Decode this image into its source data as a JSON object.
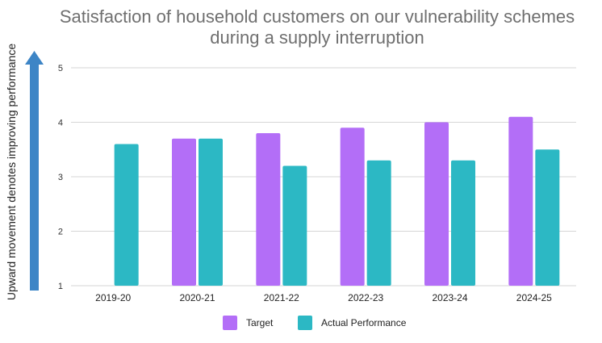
{
  "chart_data": {
    "type": "bar",
    "title": "Satisfaction of household customers on our vulnerability schemes during a supply interruption",
    "title_lines": [
      "Satisfaction of household customers on our vulnerability schemes",
      "during a supply interruption"
    ],
    "ylabel": "Upward movement denotes improving performance",
    "xlabel": "",
    "categories": [
      "2019-20",
      "2020-21",
      "2021-22",
      "2022-23",
      "2023-24",
      "2024-25"
    ],
    "series": [
      {
        "name": "Target",
        "color": "#b36ef7",
        "values": [
          null,
          3.7,
          3.8,
          3.9,
          4.0,
          4.1
        ]
      },
      {
        "name": "Actual Performance",
        "color": "#2cb8c4",
        "values": [
          3.6,
          3.7,
          3.2,
          3.3,
          3.3,
          3.5
        ]
      }
    ],
    "ylim": [
      1,
      5
    ],
    "yticks": [
      "1",
      "2",
      "3",
      "4",
      "5"
    ],
    "grid": true,
    "legend_position": "bottom",
    "arrow_color": "#3d85c6"
  }
}
